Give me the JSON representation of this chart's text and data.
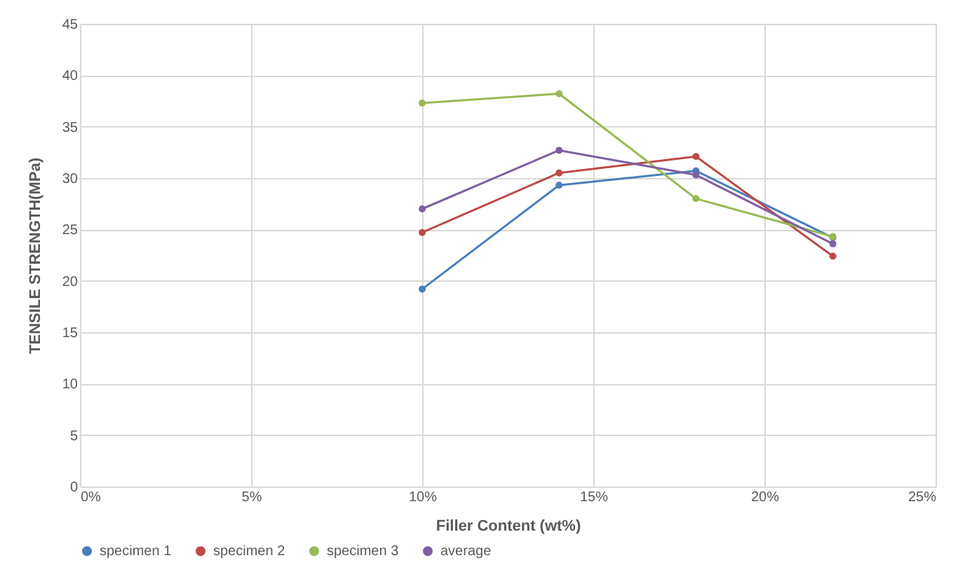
{
  "chart_data": {
    "type": "line",
    "xlabel": "Filler Content (wt%)",
    "ylabel": "TENSILE STRENGTH(MPa)",
    "x": [
      10,
      14,
      18,
      22
    ],
    "series": [
      {
        "name": "specimen 1",
        "color": "#4a7ebb",
        "values": [
          19.2,
          29.3,
          30.7,
          24.2
        ]
      },
      {
        "name": "specimen 2",
        "color": "#be4b48",
        "values": [
          24.7,
          30.5,
          32.1,
          22.4
        ]
      },
      {
        "name": "specimen 3",
        "color": "#98b954",
        "values": [
          37.3,
          38.2,
          28.0,
          24.3
        ]
      },
      {
        "name": "average",
        "color": "#7d60a0",
        "values": [
          27.0,
          32.7,
          30.3,
          23.6
        ]
      }
    ],
    "xlim": [
      0,
      25
    ],
    "xticks": [
      {
        "value": 0,
        "label": "0%"
      },
      {
        "value": 5,
        "label": "5%"
      },
      {
        "value": 10,
        "label": "10%"
      },
      {
        "value": 15,
        "label": "15%"
      },
      {
        "value": 20,
        "label": "20%"
      },
      {
        "value": 25,
        "label": "25%"
      }
    ],
    "ylim": [
      0,
      45
    ],
    "yticks": [
      0,
      5,
      10,
      15,
      20,
      25,
      30,
      35,
      40,
      45
    ],
    "grid": true,
    "legend": "bottom",
    "marker": "circle",
    "line_style": "solid"
  }
}
